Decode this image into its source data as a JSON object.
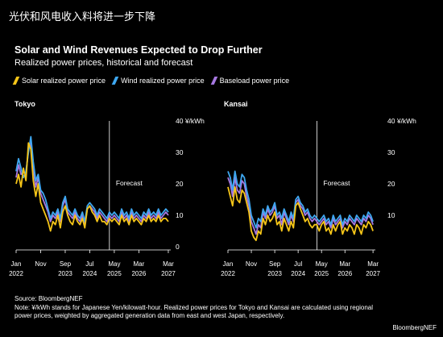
{
  "headline": "光伏和风电收入料将进一步下降",
  "title": "Solar and Wind Revenues Expected to Drop Further",
  "subtitle": "Realized power prices, historical and forecast",
  "legend": [
    {
      "label": "Solar realized power price",
      "color": "#f5c518"
    },
    {
      "label": "Wind realized power price",
      "color": "#3ea7f0"
    },
    {
      "label": "Baseload power price",
      "color": "#a678e0"
    }
  ],
  "footer": {
    "source": "Source: BloombergNEF",
    "note": "Note: ¥/kWh stands for Japanese Yen/kilowatt-hour. Realized power prices for Tokyo and Kansai are calculated using regional power prices, weighted by aggregated generation data from east and west Japan, respectively."
  },
  "brand": "BloombergNEF",
  "chart_data": [
    {
      "type": "line",
      "title": "Tokyo",
      "ylabel": "¥/kWh",
      "ylim": [
        0,
        40
      ],
      "yticks": [
        0,
        10,
        20,
        30,
        40
      ],
      "xlim": [
        2022.0,
        2027.25
      ],
      "x_tick_labels": [
        {
          "x": 2022.0,
          "month": "Jan",
          "year": "2022"
        },
        {
          "x": 2022.833,
          "month": "Nov",
          "year": ""
        },
        {
          "x": 2023.667,
          "month": "Sep",
          "year": "2023"
        },
        {
          "x": 2024.5,
          "month": "Jul",
          "year": "2024"
        },
        {
          "x": 2025.333,
          "month": "May",
          "year": "2025"
        },
        {
          "x": 2026.167,
          "month": "Mar",
          "year": "2026"
        },
        {
          "x": 2027.167,
          "month": "Mar",
          "year": "2027"
        }
      ],
      "forecast_x": 2025.167,
      "annotation": "Forecast",
      "x": [
        2022.0,
        2022.083,
        2022.167,
        2022.25,
        2022.333,
        2022.417,
        2022.5,
        2022.583,
        2022.667,
        2022.75,
        2022.833,
        2022.917,
        2023.0,
        2023.083,
        2023.167,
        2023.25,
        2023.333,
        2023.417,
        2023.5,
        2023.583,
        2023.667,
        2023.75,
        2023.833,
        2023.917,
        2024.0,
        2024.083,
        2024.167,
        2024.25,
        2024.333,
        2024.417,
        2024.5,
        2024.583,
        2024.667,
        2024.75,
        2024.833,
        2024.917,
        2025.0,
        2025.083,
        2025.167,
        2025.25,
        2025.333,
        2025.417,
        2025.5,
        2025.583,
        2025.667,
        2025.75,
        2025.833,
        2025.917,
        2026.0,
        2026.083,
        2026.167,
        2026.25,
        2026.333,
        2026.417,
        2026.5,
        2026.583,
        2026.667,
        2026.75,
        2026.833,
        2026.917,
        2027.0,
        2027.083,
        2027.167
      ],
      "series": [
        {
          "name": "Wind realized power price",
          "color": "#3ea7f0",
          "values": [
            24,
            28,
            25,
            22,
            24,
            30,
            35,
            27,
            21,
            23,
            18,
            17,
            15,
            12,
            9,
            11,
            10,
            12,
            9,
            14,
            16,
            12,
            11,
            10,
            12,
            10,
            9,
            11,
            8,
            13,
            14,
            13,
            12,
            10,
            12,
            11,
            10,
            9,
            11,
            10,
            11,
            10,
            9,
            12,
            10,
            11,
            9,
            12,
            10,
            11,
            10,
            9,
            11,
            10,
            12,
            10,
            11,
            10,
            12,
            10,
            11,
            12,
            11
          ]
        },
        {
          "name": "Solar realized power price",
          "color": "#f5c518",
          "values": [
            20,
            23,
            19,
            25,
            21,
            33,
            31,
            21,
            16,
            20,
            14,
            12,
            10,
            8,
            5,
            8,
            7,
            10,
            6,
            11,
            13,
            10,
            8,
            7,
            10,
            8,
            7,
            9,
            6,
            12,
            13,
            11,
            10,
            8,
            10,
            8,
            8,
            7,
            9,
            8,
            9,
            8,
            7,
            10,
            8,
            9,
            7,
            10,
            8,
            9,
            8,
            7,
            9,
            8,
            10,
            8,
            9,
            8,
            10,
            8,
            9,
            9,
            8
          ]
        },
        {
          "name": "Baseload power price",
          "color": "#a678e0",
          "values": [
            22,
            26,
            23,
            24,
            23,
            31,
            33,
            25,
            19,
            22,
            17,
            15,
            13,
            11,
            8,
            10,
            9,
            11,
            8,
            13,
            15,
            11,
            10,
            9,
            11,
            9,
            8,
            10,
            7,
            12,
            13,
            12,
            11,
            9,
            11,
            10,
            9,
            8,
            10,
            9,
            10,
            9,
            8,
            11,
            9,
            10,
            8,
            11,
            9,
            10,
            9,
            8,
            10,
            9,
            11,
            9,
            10,
            9,
            11,
            9,
            10,
            11,
            10
          ]
        }
      ]
    },
    {
      "type": "line",
      "title": "Kansai",
      "ylabel": "¥/kWh",
      "ylim": [
        0,
        40
      ],
      "yticks": [
        10,
        20,
        30,
        40
      ],
      "xlim": [
        2022.0,
        2027.25
      ],
      "x_tick_labels": [
        {
          "x": 2022.0,
          "month": "Jan",
          "year": "2022"
        },
        {
          "x": 2022.833,
          "month": "Nov",
          "year": ""
        },
        {
          "x": 2023.667,
          "month": "Sep",
          "year": "2023"
        },
        {
          "x": 2024.5,
          "month": "Jul",
          "year": "2024"
        },
        {
          "x": 2025.333,
          "month": "May",
          "year": "2025"
        },
        {
          "x": 2026.167,
          "month": "Mar",
          "year": "2026"
        },
        {
          "x": 2027.167,
          "month": "Mar",
          "year": "2027"
        }
      ],
      "forecast_x": 2025.167,
      "annotation": "Forecast",
      "x": [
        2022.0,
        2022.083,
        2022.167,
        2022.25,
        2022.333,
        2022.417,
        2022.5,
        2022.583,
        2022.667,
        2022.75,
        2022.833,
        2022.917,
        2023.0,
        2023.083,
        2023.167,
        2023.25,
        2023.333,
        2023.417,
        2023.5,
        2023.583,
        2023.667,
        2023.75,
        2023.833,
        2023.917,
        2024.0,
        2024.083,
        2024.167,
        2024.25,
        2024.333,
        2024.417,
        2024.5,
        2024.583,
        2024.667,
        2024.75,
        2024.833,
        2024.917,
        2025.0,
        2025.083,
        2025.167,
        2025.25,
        2025.333,
        2025.417,
        2025.5,
        2025.583,
        2025.667,
        2025.75,
        2025.833,
        2025.917,
        2026.0,
        2026.083,
        2026.167,
        2026.25,
        2026.333,
        2026.417,
        2026.5,
        2026.583,
        2026.667,
        2026.75,
        2026.833,
        2026.917,
        2027.0,
        2027.083,
        2027.167
      ],
      "series": [
        {
          "name": "Wind realized power price",
          "color": "#3ea7f0",
          "values": [
            24,
            22,
            18,
            24,
            20,
            19,
            23,
            22,
            18,
            15,
            10,
            8,
            6,
            9,
            8,
            12,
            10,
            13,
            11,
            12,
            14,
            10,
            11,
            9,
            12,
            10,
            8,
            11,
            9,
            15,
            16,
            14,
            13,
            11,
            12,
            10,
            9,
            10,
            9,
            8,
            9,
            10,
            8,
            9,
            7,
            10,
            8,
            9,
            10,
            7,
            9,
            8,
            10,
            9,
            8,
            10,
            9,
            8,
            10,
            9,
            11,
            10,
            8
          ]
        },
        {
          "name": "Solar realized power price",
          "color": "#f5c518",
          "values": [
            19,
            16,
            13,
            19,
            15,
            14,
            18,
            17,
            14,
            11,
            5,
            3,
            2,
            5,
            4,
            9,
            7,
            10,
            8,
            9,
            11,
            7,
            8,
            5,
            9,
            7,
            5,
            8,
            6,
            13,
            14,
            12,
            10,
            8,
            9,
            7,
            6,
            7,
            7,
            5,
            7,
            8,
            5,
            6,
            4,
            7,
            5,
            7,
            8,
            4,
            6,
            5,
            7,
            6,
            4,
            7,
            6,
            4,
            7,
            6,
            8,
            7,
            5
          ]
        },
        {
          "name": "Baseload power price",
          "color": "#a678e0",
          "values": [
            22,
            20,
            16,
            22,
            18,
            17,
            21,
            20,
            16,
            13,
            8,
            6,
            4,
            7,
            6,
            11,
            9,
            12,
            10,
            11,
            13,
            9,
            10,
            7,
            11,
            9,
            7,
            10,
            8,
            14,
            15,
            13,
            12,
            10,
            11,
            9,
            8,
            9,
            8,
            7,
            8,
            9,
            7,
            8,
            6,
            9,
            7,
            8,
            9,
            6,
            8,
            7,
            9,
            8,
            7,
            9,
            8,
            7,
            9,
            8,
            10,
            9,
            7
          ]
        }
      ]
    }
  ]
}
